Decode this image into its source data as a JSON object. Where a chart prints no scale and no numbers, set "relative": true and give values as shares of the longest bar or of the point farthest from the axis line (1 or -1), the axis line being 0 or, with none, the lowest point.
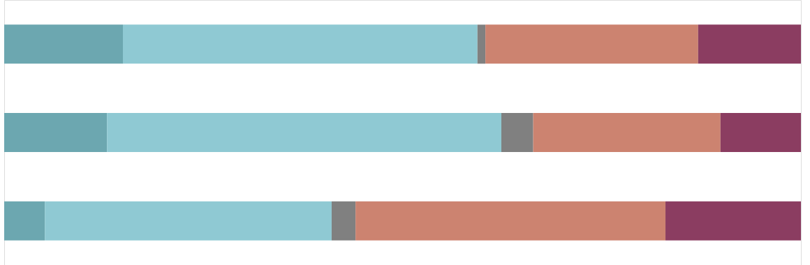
{
  "chart_data": {
    "type": "bar",
    "orientation": "horizontal",
    "stacked": true,
    "relative": true,
    "categories": [
      null,
      null,
      null
    ],
    "series": [
      {
        "color": "#6ca7b0",
        "values": [
          0.149,
          0.129,
          0.051
        ]
      },
      {
        "color": "#8fc9d3",
        "values": [
          0.445,
          0.495,
          0.36
        ]
      },
      {
        "color": "#808080",
        "values": [
          0.01,
          0.04,
          0.03
        ]
      },
      {
        "color": "#cc8370",
        "values": [
          0.267,
          0.235,
          0.389
        ]
      },
      {
        "color": "#8b3d61",
        "values": [
          0.129,
          0.101,
          0.17
        ]
      }
    ]
  }
}
